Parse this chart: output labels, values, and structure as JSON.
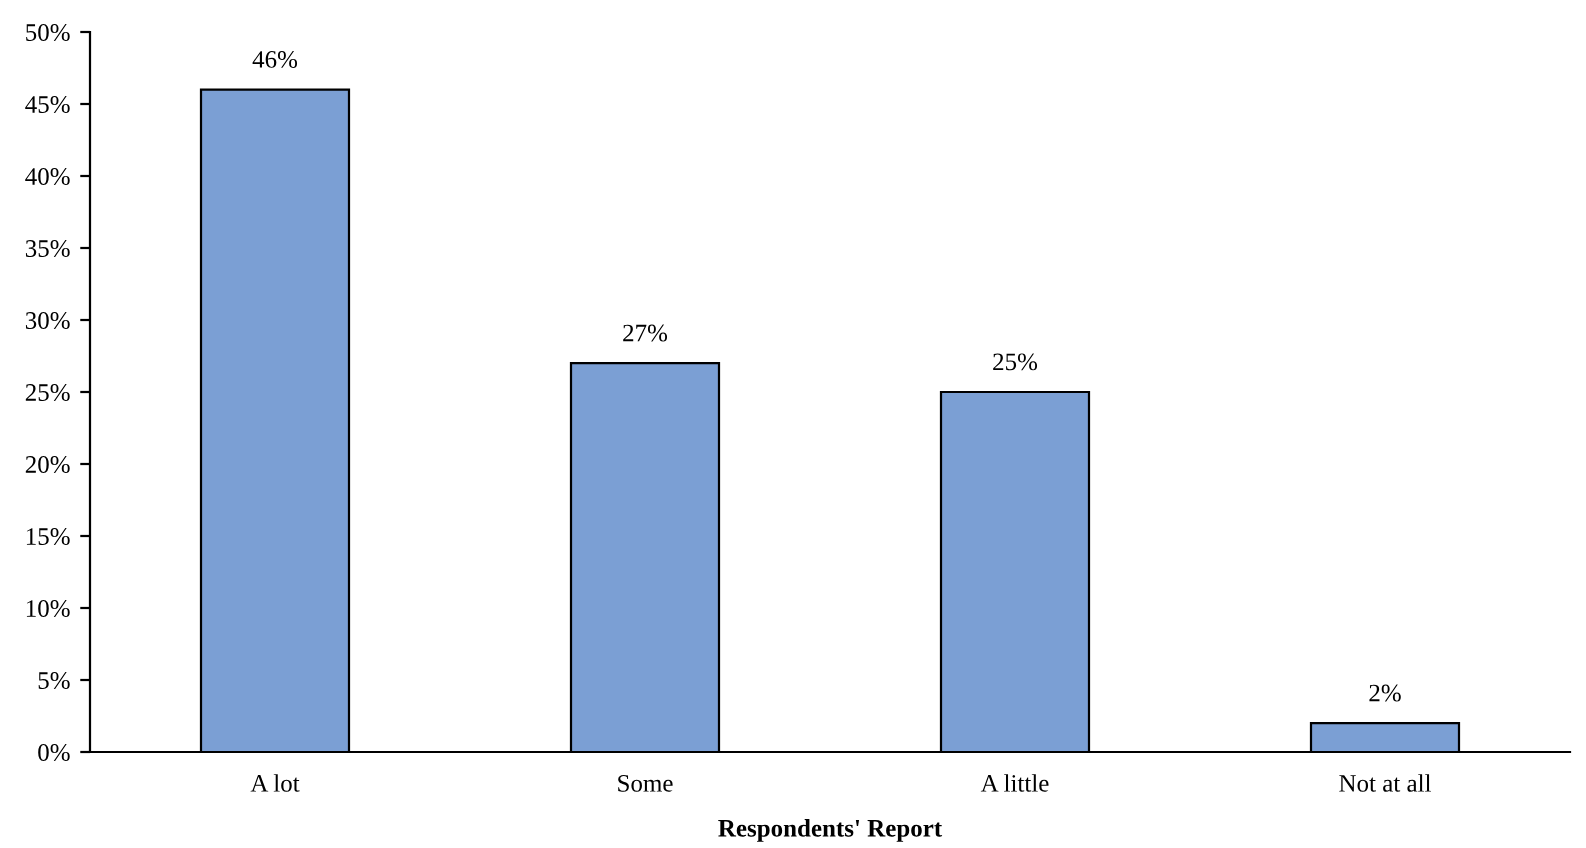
{
  "chart_data": {
    "type": "bar",
    "xlabel": "Respondents' Report",
    "categories": [
      "A lot",
      "Some",
      "A little",
      "Not at all"
    ],
    "values": [
      46,
      27,
      25,
      2
    ],
    "value_labels": [
      "46%",
      "27%",
      "25%",
      "2%"
    ],
    "color": "#7b9fd4",
    "ylim": [
      0,
      50
    ],
    "yticks": [
      {
        "value": 0,
        "label": "0%"
      },
      {
        "value": 5,
        "label": "5%"
      },
      {
        "value": 10,
        "label": "10%"
      },
      {
        "value": 15,
        "label": "15%"
      },
      {
        "value": 20,
        "label": "20%"
      },
      {
        "value": 25,
        "label": "25%"
      },
      {
        "value": 30,
        "label": "30%"
      },
      {
        "value": 35,
        "label": "35%"
      },
      {
        "value": 40,
        "label": "40%"
      },
      {
        "value": 45,
        "label": "45%"
      },
      {
        "value": 50,
        "label": "50%"
      }
    ],
    "grid": false,
    "legend": false
  }
}
